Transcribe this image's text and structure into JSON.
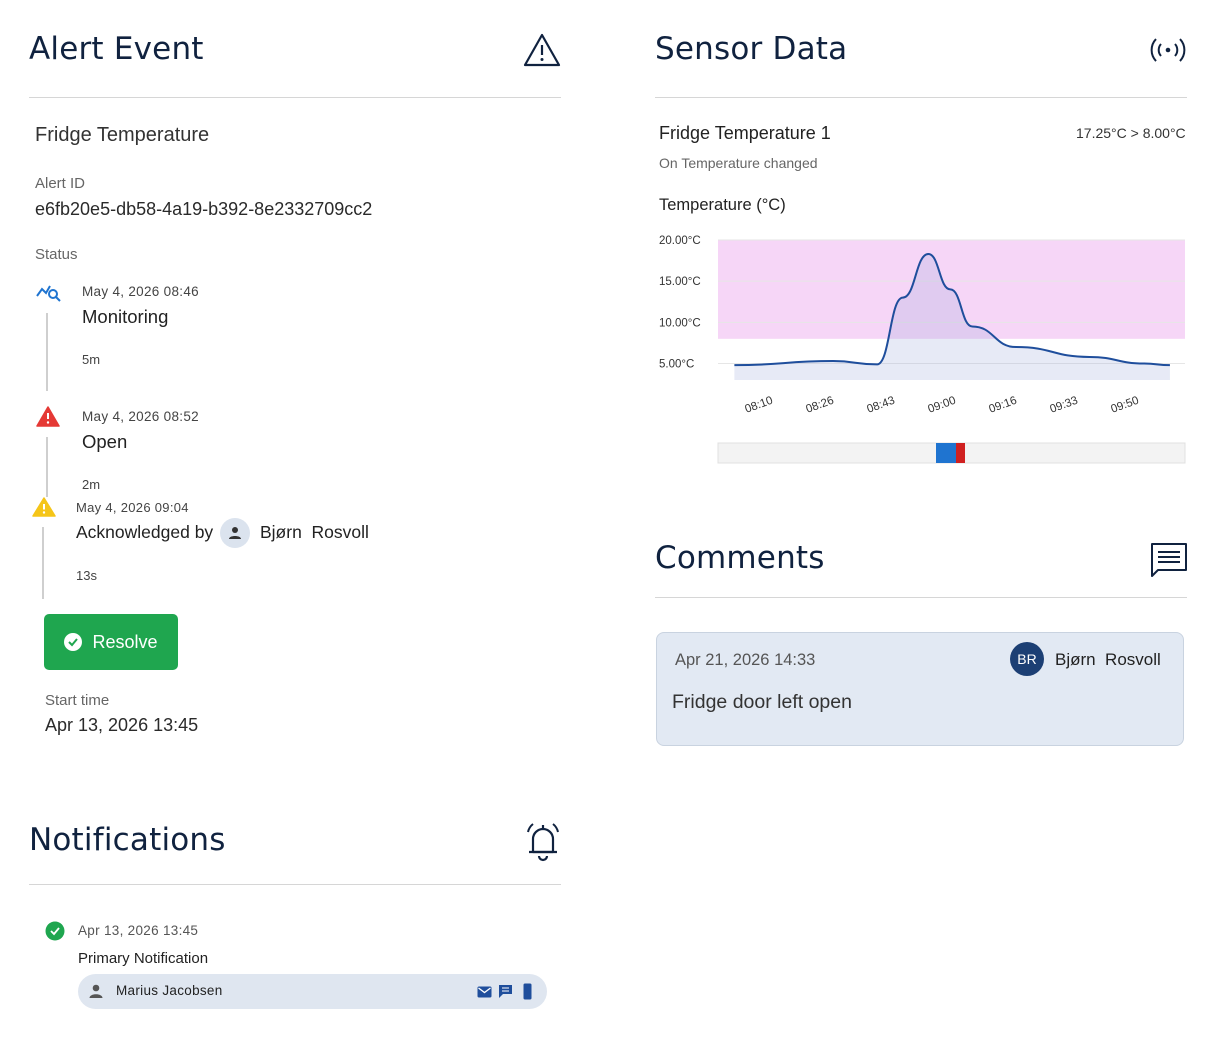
{
  "alert": {
    "title": "Alert Event",
    "name": "Fridge Temperature",
    "id_label": "Alert ID",
    "id_value": "e6fb20e5-db58-4a19-b392-8e2332709cc2",
    "status_label": "Status",
    "timeline": [
      {
        "date": "May 4, 2026 08:46",
        "status": "Monitoring",
        "duration": "5m",
        "icon": "monitoring-chart-icon"
      },
      {
        "date": "May 4, 2026 08:52",
        "status": "Open",
        "duration": "2m",
        "icon": "red-warning-icon"
      },
      {
        "date": "May 4, 2026 09:04",
        "status": "Acknowledged by",
        "user": "Bjørn  Rosvoll",
        "duration": "13s",
        "icon": "yellow-warning-icon"
      }
    ],
    "resolve_label": "Resolve",
    "start_time_label": "Start time",
    "start_time_value": "Apr 13, 2026 13:45"
  },
  "sensor": {
    "title": "Sensor Data",
    "name": "Fridge Temperature 1",
    "trigger": "On Temperature changed",
    "condition": "17.25°C > 8.00°C"
  },
  "chart_data": {
    "type": "line",
    "title": "Temperature (°C)",
    "xlabel": "",
    "ylabel": "",
    "x_ticks": [
      "08:10",
      "08:26",
      "08:43",
      "09:00",
      "09:16",
      "09:33",
      "09:50"
    ],
    "y_ticks": [
      "5.00°C",
      "10.00°C",
      "15.00°C",
      "20.00°C"
    ],
    "ylim": [
      3,
      20
    ],
    "threshold": 8,
    "threshold_color": "#f6d6f7",
    "line_color": "#1f4e9c",
    "x_minutes_from_first_tick": [
      -7,
      20,
      32,
      39,
      46,
      52,
      58,
      70,
      90,
      105,
      112
    ],
    "series": [
      {
        "values": [
          4.8,
          5.3,
          4.9,
          13,
          18.3,
          14,
          9.5,
          7,
          5.8,
          5,
          4.8
        ]
      }
    ],
    "grid": true,
    "scrollbar_colors": [
      "#1f74d0",
      "#d02020"
    ]
  },
  "comments": {
    "title": "Comments",
    "items": [
      {
        "date": "Apr 21, 2026 14:33",
        "initials": "BR",
        "author": "Bjørn  Rosvoll",
        "text": "Fridge door left open"
      }
    ]
  },
  "notifications": {
    "title": "Notifications",
    "items": [
      {
        "date": "Apr 13, 2026 13:45",
        "type": "Primary Notification",
        "recipient": "Marius Jacobsen",
        "channels": [
          "email-icon",
          "chat-icon",
          "phone-icon"
        ]
      }
    ]
  }
}
